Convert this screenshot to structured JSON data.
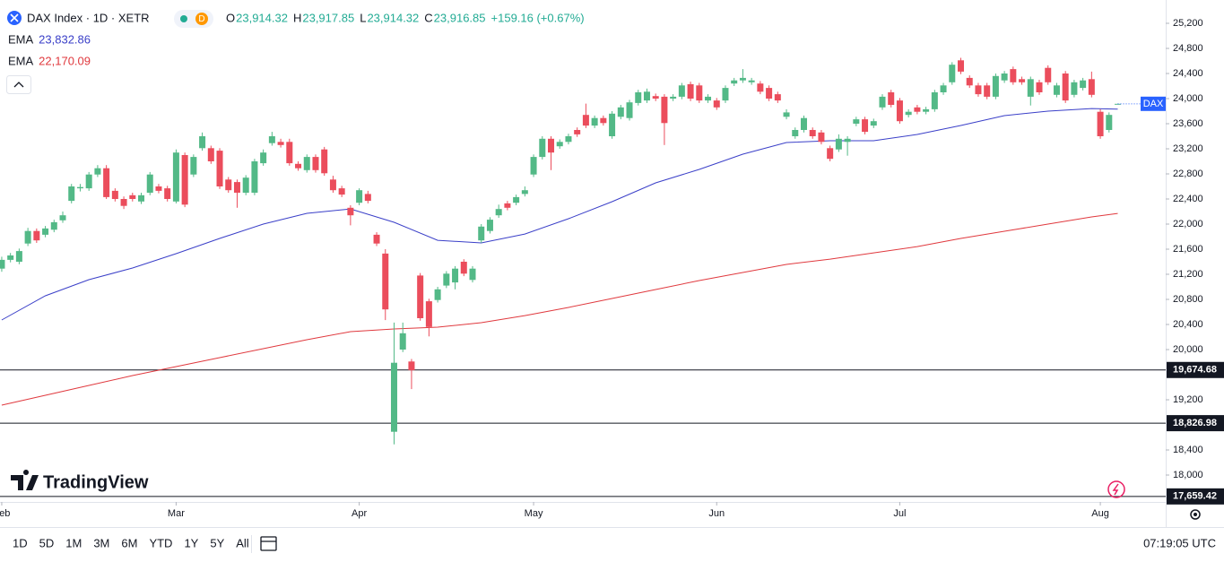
{
  "header": {
    "symbol": "DAX Index · 1D · XETR",
    "badge": "D",
    "ohlc": [
      {
        "label": "O",
        "value": "23,914.32"
      },
      {
        "label": "H",
        "value": "23,917.85"
      },
      {
        "label": "L",
        "value": "23,914.32"
      },
      {
        "label": "C",
        "value": "23,916.85"
      }
    ],
    "change": "+159.16 (+0.67%)"
  },
  "brand": "TradingView",
  "toolbar": {
    "ranges": [
      "1D",
      "5D",
      "1M",
      "3M",
      "6M",
      "YTD",
      "1Y",
      "5Y",
      "All"
    ],
    "time": "07:19:05 UTC"
  },
  "chart_data": {
    "type": "candlestick",
    "up_color": "#53b987",
    "down_color": "#eb4d5c",
    "open": [
      21290,
      21430,
      21400,
      21690,
      21890,
      21830,
      21910,
      22060,
      22370,
      22570,
      22570,
      22790,
      22890,
      22530,
      22400,
      22460,
      22360,
      22500,
      22600,
      22570,
      22360,
      23100,
      22790,
      23210,
      23210,
      23170,
      22710,
      22670,
      22500,
      22500,
      22970,
      23290,
      23310,
      23310,
      22960,
      22860,
      23070,
      23190,
      22710,
      22570,
      22260,
      22340,
      22480,
      21830,
      21530,
      18690,
      20000,
      19810,
      21180,
      20770,
      20790,
      21020,
      21070,
      21400,
      21110,
      21740,
      21890,
      22140,
      22330,
      22340,
      22480,
      22790,
      23070,
      23360,
      23240,
      23310,
      23500,
      23740,
      23570,
      23690,
      23400,
      23710,
      23690,
      23930,
      23970,
      24040,
      24030,
      24000,
      24030,
      24230,
      24210,
      23970,
      23970,
      23970,
      24240,
      24290,
      24260,
      24240,
      24170,
      24070,
      23710,
      23400,
      23500,
      23500,
      23460,
      23210,
      23190,
      23310,
      23600,
      23670,
      23570,
      23860,
      24100,
      23970,
      23740,
      23860,
      23790,
      23830,
      24100,
      24260,
      24610,
      24330,
      24210,
      24210,
      24030,
      24290,
      24470,
      24310,
      24030,
      24260,
      24490,
      24060,
      24400,
      24060,
      24170,
      24310,
      23790,
      23500,
      23914.32
    ],
    "high": [
      21480,
      21540,
      21610,
      21940,
      21930,
      21970,
      22070,
      22200,
      22640,
      22640,
      22830,
      22940,
      22940,
      22570,
      22440,
      22500,
      22500,
      22830,
      22640,
      22610,
      23190,
      23140,
      23110,
      23460,
      23250,
      23210,
      22750,
      22710,
      22780,
      23040,
      23190,
      23470,
      23360,
      23360,
      23000,
      23110,
      23110,
      23230,
      22770,
      22610,
      22300,
      22570,
      22530,
      21870,
      21600,
      20430,
      20430,
      19850,
      21220,
      20810,
      21000,
      21250,
      21330,
      21440,
      21330,
      22000,
      22110,
      22310,
      22370,
      22470,
      22600,
      23110,
      23400,
      23400,
      23350,
      23440,
      23540,
      23920,
      23730,
      23730,
      23800,
      23900,
      23980,
      24140,
      24160,
      24080,
      24070,
      24070,
      24250,
      24270,
      24250,
      24070,
      24010,
      24210,
      24330,
      24470,
      24330,
      24280,
      24210,
      24110,
      23830,
      23540,
      23730,
      23540,
      23500,
      23250,
      23430,
      23400,
      23710,
      23710,
      23680,
      24070,
      24140,
      24010,
      23830,
      23900,
      23870,
      24140,
      24250,
      24580,
      24650,
      24370,
      24250,
      24250,
      24400,
      24440,
      24510,
      24350,
      24350,
      24300,
      24530,
      24250,
      24440,
      24300,
      24330,
      24430,
      23830,
      23780,
      23917.85
    ],
    "low": [
      21240,
      21390,
      21360,
      21650,
      21700,
      21790,
      21870,
      22020,
      22330,
      22520,
      22530,
      22750,
      22400,
      22360,
      22240,
      22360,
      22320,
      22460,
      22490,
      22360,
      22330,
      22270,
      22750,
      23170,
      22960,
      22560,
      22500,
      22260,
      22460,
      22460,
      22930,
      23250,
      23220,
      22930,
      22850,
      22820,
      22820,
      22770,
      22500,
      22430,
      21980,
      22300,
      22330,
      21650,
      20470,
      18490,
      19960,
      19370,
      20460,
      20210,
      20750,
      20980,
      20960,
      21170,
      21070,
      21700,
      21850,
      22100,
      22220,
      22300,
      22440,
      22750,
      23030,
      22860,
      23200,
      23270,
      23390,
      23530,
      23530,
      23570,
      23360,
      23670,
      23650,
      23890,
      23930,
      23960,
      23260,
      23960,
      23990,
      23960,
      23930,
      23930,
      23820,
      23930,
      24200,
      24250,
      24220,
      24070,
      23960,
      23930,
      23670,
      23360,
      23460,
      23360,
      23270,
      23000,
      23150,
      23090,
      23560,
      23430,
      23530,
      23820,
      23860,
      23600,
      23700,
      23750,
      23750,
      23790,
      24060,
      24220,
      24390,
      24170,
      24030,
      23990,
      23990,
      24250,
      24220,
      24220,
      23890,
      24060,
      24220,
      24020,
      23930,
      24020,
      24130,
      24020,
      23360,
      23460,
      23914.32
    ],
    "close": [
      21430,
      21500,
      21570,
      21890,
      21740,
      21930,
      22030,
      22140,
      22600,
      22590,
      22790,
      22890,
      22430,
      22400,
      22290,
      22400,
      22460,
      22790,
      22530,
      22400,
      23140,
      22310,
      23070,
      23400,
      23000,
      22600,
      22540,
      22500,
      22740,
      23000,
      23140,
      23400,
      23260,
      22970,
      22890,
      23070,
      22860,
      22810,
      22540,
      22470,
      22140,
      22540,
      22370,
      21690,
      20640,
      19790,
      20260,
      19670,
      20500,
      20360,
      20960,
      21210,
      21290,
      21210,
      21290,
      21960,
      22070,
      22240,
      22260,
      22430,
      22540,
      23070,
      23360,
      23140,
      23310,
      23400,
      23430,
      23570,
      23690,
      23610,
      23760,
      23860,
      23940,
      24100,
      24110,
      24000,
      23610,
      24030,
      24210,
      24000,
      23970,
      24030,
      23860,
      24170,
      24290,
      24330,
      24290,
      24110,
      24000,
      23970,
      23780,
      23500,
      23690,
      23400,
      23310,
      23040,
      23360,
      23360,
      23670,
      23470,
      23640,
      24030,
      23900,
      23640,
      23790,
      23790,
      23830,
      24100,
      24210,
      24540,
      24430,
      24210,
      24070,
      24030,
      24360,
      24400,
      24260,
      24260,
      24310,
      24100,
      24260,
      24210,
      23970,
      24260,
      24290,
      24060,
      23400,
      23740,
      23916.85
    ],
    "lines": [
      {
        "name": "EMA",
        "value_label": "23,832.86",
        "color": "#3a3fc8",
        "x": [
          0,
          5,
          10,
          15,
          20,
          25,
          30,
          35,
          40,
          45,
          50,
          55,
          60,
          65,
          70,
          75,
          80,
          85,
          90,
          95,
          100,
          105,
          110,
          115,
          120,
          125,
          128
        ],
        "values": [
          20471,
          20857,
          21114,
          21300,
          21528,
          21771,
          22000,
          22171,
          22242,
          22028,
          21742,
          21700,
          21842,
          22085,
          22357,
          22657,
          22871,
          23114,
          23300,
          23328,
          23328,
          23428,
          23571,
          23728,
          23800,
          23842,
          23832.86
        ]
      },
      {
        "name": "EMA",
        "value_label": "22,170.09",
        "color": "#e0393e",
        "x": [
          0,
          5,
          10,
          15,
          20,
          25,
          30,
          35,
          40,
          45,
          50,
          55,
          60,
          65,
          70,
          75,
          80,
          85,
          90,
          95,
          100,
          105,
          110,
          115,
          120,
          125,
          128
        ],
        "values": [
          19114,
          19271,
          19428,
          19585,
          19728,
          19871,
          20014,
          20157,
          20285,
          20328,
          20357,
          20428,
          20542,
          20671,
          20814,
          20957,
          21100,
          21228,
          21357,
          21442,
          21542,
          21642,
          21771,
          21885,
          22000,
          22114,
          22170.09
        ]
      }
    ],
    "hlines": [
      {
        "value": 19674.68,
        "label": "19,674.68"
      },
      {
        "value": 18826.98,
        "label": "18,826.98"
      },
      {
        "value": 17659.42,
        "label": "17,659.42"
      }
    ],
    "price_tag": "DAX",
    "xlim": [
      -0.2,
      133.5
    ],
    "xticks": [
      {
        "value": 0,
        "label": "Feb"
      },
      {
        "value": 20,
        "label": "Mar"
      },
      {
        "value": 41,
        "label": "Apr"
      },
      {
        "value": 61,
        "label": "May"
      },
      {
        "value": 82,
        "label": "Jun"
      },
      {
        "value": 103,
        "label": "Jul"
      },
      {
        "value": 126,
        "label": "Aug"
      }
    ],
    "ylim": [
      17571.4,
      25571.4
    ],
    "yticks": [
      {
        "value": 25200,
        "label": "25,200"
      },
      {
        "value": 24800,
        "label": "24,800"
      },
      {
        "value": 24400,
        "label": "24,400"
      },
      {
        "value": 24000,
        "label": "24,000"
      },
      {
        "value": 23600,
        "label": "23,600"
      },
      {
        "value": 23200,
        "label": "23,200"
      },
      {
        "value": 22800,
        "label": "22,800"
      },
      {
        "value": 22400,
        "label": "22,400"
      },
      {
        "value": 22000,
        "label": "22,000"
      },
      {
        "value": 21600,
        "label": "21,600"
      },
      {
        "value": 21200,
        "label": "21,200"
      },
      {
        "value": 20800,
        "label": "20,800"
      },
      {
        "value": 20400,
        "label": "20,400"
      },
      {
        "value": 20000,
        "label": "20,000"
      },
      {
        "value": 19200,
        "label": "19,200"
      },
      {
        "value": 18400,
        "label": "18,400"
      },
      {
        "value": 18000,
        "label": "18,000"
      }
    ],
    "grid": false
  }
}
